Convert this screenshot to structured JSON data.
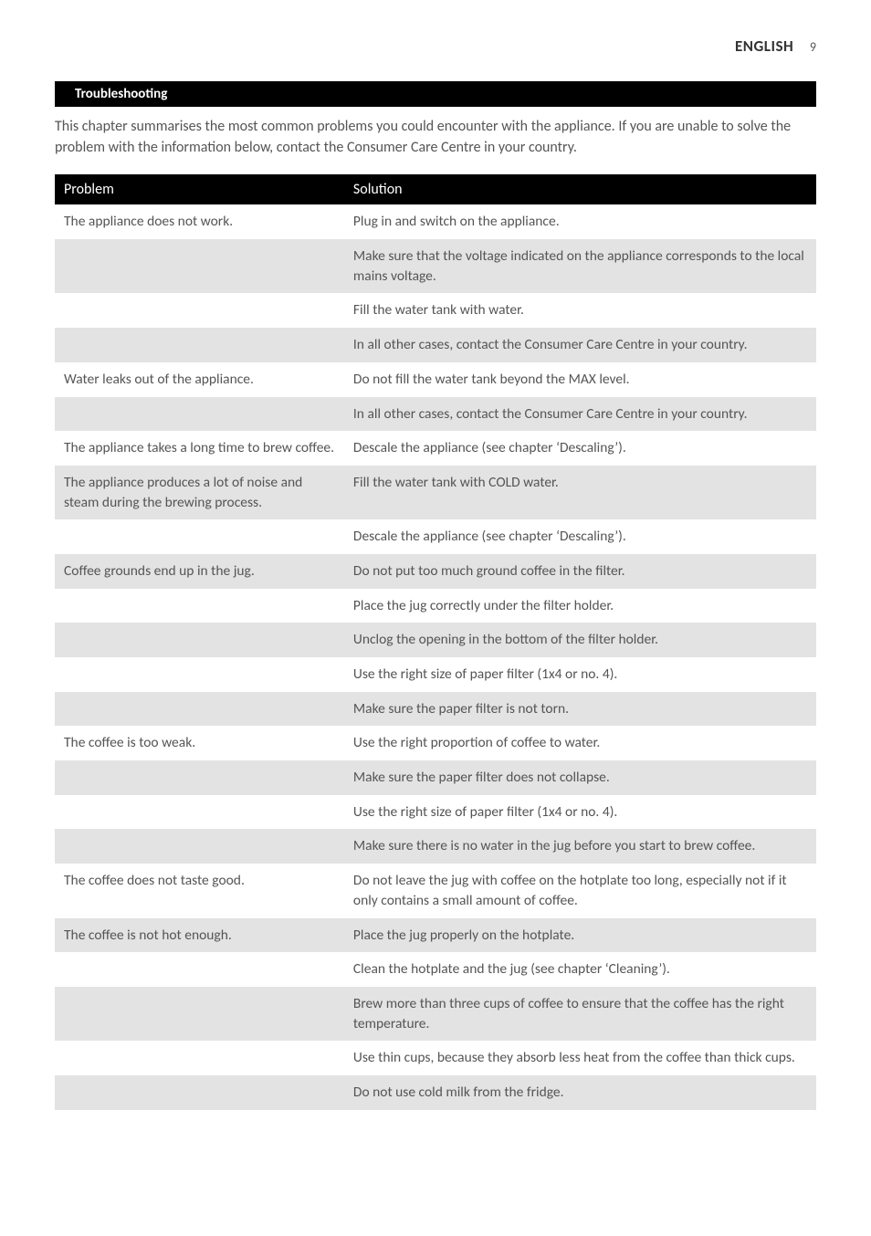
{
  "header": {
    "language": "ENGLISH",
    "page_number": "9"
  },
  "section": {
    "title": "Troubleshooting",
    "intro": "This chapter summarises the most common problems you could encounter with the appliance. If you are unable to solve the problem with the information below, contact the Consumer Care Centre in your country."
  },
  "table": {
    "columns": [
      "Problem",
      "Solution"
    ],
    "column_widths": [
      "38%",
      "62%"
    ],
    "header_bg": "#000000",
    "header_fg": "#ffffff",
    "row_colors": {
      "white": "#ffffff",
      "gray": "#e3e3e3"
    },
    "body_text_color": "#555555",
    "font_size_pt": 12,
    "rows": [
      {
        "shade": "white",
        "problem": "The appliance does not work.",
        "solution": "Plug in and switch on the appliance."
      },
      {
        "shade": "gray",
        "problem": "",
        "solution": "Make sure that the voltage indicated on the appliance corresponds to the local mains voltage."
      },
      {
        "shade": "white",
        "problem": "",
        "solution": "Fill the water tank with water."
      },
      {
        "shade": "gray",
        "problem": "",
        "solution": "In all other cases, contact the Consumer Care Centre in your country."
      },
      {
        "shade": "white",
        "problem": "Water leaks out of the appliance.",
        "solution": "Do not fill the water tank beyond the MAX level."
      },
      {
        "shade": "gray",
        "problem": "",
        "solution": "In all other cases, contact the Consumer Care Centre in your country."
      },
      {
        "shade": "white",
        "problem": "The appliance takes a long time to brew coffee.",
        "solution": "Descale the appliance (see chapter ‘Descaling’)."
      },
      {
        "shade": "gray",
        "problem": "The appliance produces a lot of noise and steam during the brewing process.",
        "solution": "Fill the water tank with COLD water."
      },
      {
        "shade": "white",
        "problem": "",
        "solution": "Descale the appliance (see chapter ‘Descaling’)."
      },
      {
        "shade": "gray",
        "problem": "Coffee grounds end up in the jug.",
        "solution": "Do not put too much ground coffee in the filter."
      },
      {
        "shade": "white",
        "problem": "",
        "solution": "Place the jug correctly under the filter holder."
      },
      {
        "shade": "gray",
        "problem": "",
        "solution": "Unclog the opening in the bottom of the filter holder."
      },
      {
        "shade": "white",
        "problem": "",
        "solution": "Use the right size of paper filter (1x4 or no. 4)."
      },
      {
        "shade": "gray",
        "problem": "",
        "solution": "Make sure the paper filter is not torn."
      },
      {
        "shade": "white",
        "problem": "The coffee is too weak.",
        "solution": "Use the right proportion of coffee to water."
      },
      {
        "shade": "gray",
        "problem": "",
        "solution": "Make sure the paper filter does not collapse."
      },
      {
        "shade": "white",
        "problem": "",
        "solution": "Use the right size of paper filter (1x4 or no. 4)."
      },
      {
        "shade": "gray",
        "problem": "",
        "solution": "Make sure there is no water in the jug before you start to brew coffee."
      },
      {
        "shade": "white",
        "problem": "The coffee does not taste good.",
        "solution": "Do not leave the jug with coffee on the hotplate too long, especially not if it only contains a small amount of coffee."
      },
      {
        "shade": "gray",
        "problem": "The coffee is not hot enough.",
        "solution": "Place the jug properly on the hotplate."
      },
      {
        "shade": "white",
        "problem": "",
        "solution": "Clean the hotplate and the jug (see chapter ‘Cleaning’)."
      },
      {
        "shade": "gray",
        "problem": "",
        "solution": "Brew more than three cups of coffee to ensure that the coffee has the right temperature."
      },
      {
        "shade": "white",
        "problem": "",
        "solution": "Use thin cups, because they absorb less heat from the coffee than thick cups."
      },
      {
        "shade": "gray",
        "problem": "",
        "solution": "Do not use cold milk from the fridge."
      }
    ]
  }
}
